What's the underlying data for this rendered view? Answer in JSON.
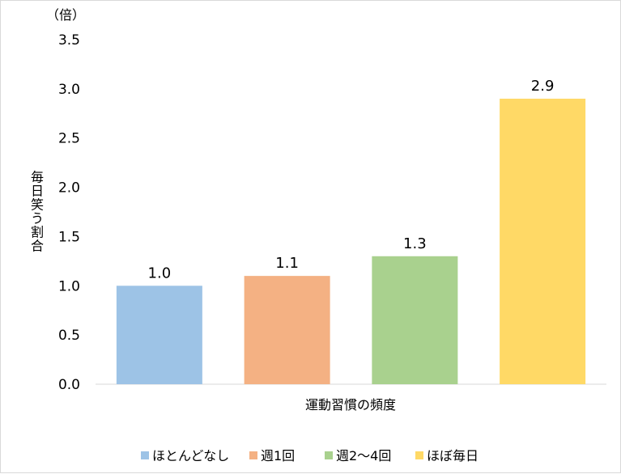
{
  "chart_data": {
    "type": "bar",
    "categories": [
      "ほとんどなし",
      "週1回",
      "週2〜4回",
      "ほぼ毎日"
    ],
    "values": [
      1.0,
      1.1,
      1.3,
      2.9
    ],
    "data_labels": [
      "1.0",
      "1.1",
      "1.3",
      "2.9"
    ],
    "colors": [
      "#9dc3e6",
      "#f4b183",
      "#a9d18e",
      "#ffd966"
    ],
    "title": "",
    "xlabel": "運動習慣の頻度",
    "ylabel": "毎日笑う割合",
    "unit": "（倍）",
    "ylim": [
      0,
      3.5
    ],
    "yticks": [
      "0.0",
      "0.5",
      "1.0",
      "1.5",
      "2.0",
      "2.5",
      "3.0",
      "3.5"
    ],
    "grid": false,
    "legend_position": "bottom"
  }
}
